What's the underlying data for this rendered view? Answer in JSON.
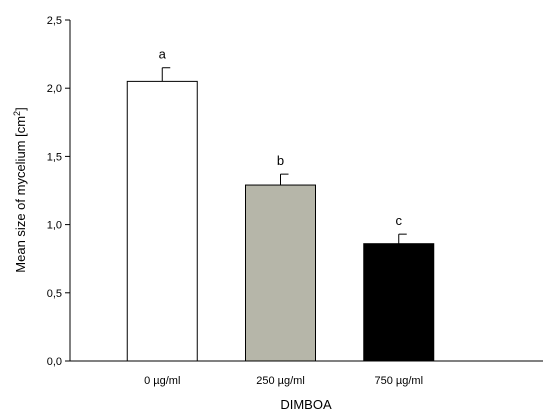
{
  "chart_data": {
    "type": "bar",
    "xlabel": "DIMBOA",
    "ylabel_main": "Mean size of mycelium [cm",
    "ylabel_sup": "2",
    "ylabel_end": "]",
    "categories": [
      "0 µg/ml",
      "250 µg/ml",
      "750 µg/ml"
    ],
    "values": [
      2.05,
      1.29,
      0.86
    ],
    "error_upper": [
      0.1,
      0.08,
      0.07
    ],
    "significance_letters": [
      "a",
      "b",
      "c"
    ],
    "bar_colors": [
      "#ffffff",
      "#b6b6a9",
      "#000000"
    ],
    "ylim": [
      0,
      2.5
    ],
    "yticks": [
      0,
      0.5,
      1.0,
      1.5,
      2.0,
      2.5
    ],
    "ytick_labels": [
      "0,0",
      "0,5",
      "1,0",
      "1,5",
      "2,0",
      "2,5"
    ],
    "grid": false,
    "legend": "none"
  }
}
